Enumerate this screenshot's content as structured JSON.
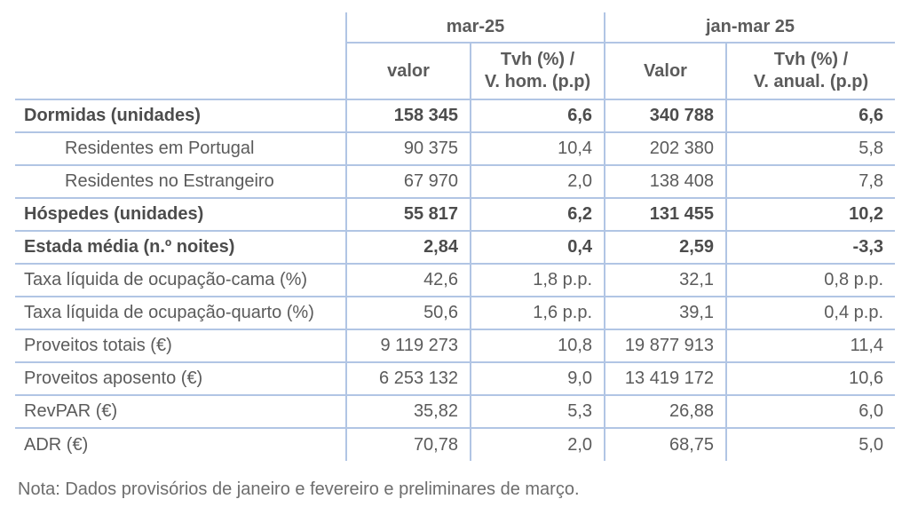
{
  "table": {
    "header": {
      "period_month": "mar-25",
      "period_quarter": "jan-mar 25",
      "col_value_month": "valor",
      "col_var_month_line1": "Tvh (%) /",
      "col_var_month_line2": "V. hom. (p.p)",
      "col_value_quarter": "Valor",
      "col_var_quarter_line1": "Tvh (%) /",
      "col_var_quarter_line2": "V. anual. (p.p)"
    },
    "rows": [
      {
        "label": "Dormidas (unidades)",
        "valor_mes": "158 345",
        "tvh_mes": "6,6",
        "valor_trim": "340 788",
        "tvh_anual": "6,6"
      },
      {
        "label": "Residentes em Portugal",
        "valor_mes": "90 375",
        "tvh_mes": "10,4",
        "valor_trim": "202 380",
        "tvh_anual": "5,8"
      },
      {
        "label": "Residentes no Estrangeiro",
        "valor_mes": "67 970",
        "tvh_mes": "2,0",
        "valor_trim": "138 408",
        "tvh_anual": "7,8"
      },
      {
        "label": "Hóspedes (unidades)",
        "valor_mes": "55 817",
        "tvh_mes": "6,2",
        "valor_trim": "131 455",
        "tvh_anual": "10,2"
      },
      {
        "label": "Estada média (n.º noites)",
        "valor_mes": "2,84",
        "tvh_mes": "0,4",
        "valor_trim": "2,59",
        "tvh_anual": "-3,3"
      },
      {
        "label": "Taxa líquida de ocupação-cama (%)",
        "valor_mes": "42,6",
        "tvh_mes": "1,8 p.p.",
        "valor_trim": "32,1",
        "tvh_anual": "0,8 p.p."
      },
      {
        "label": "Taxa líquida de ocupação-quarto (%)",
        "valor_mes": "50,6",
        "tvh_mes": "1,6 p.p.",
        "valor_trim": "39,1",
        "tvh_anual": "0,4 p.p."
      },
      {
        "label": "Proveitos totais (€)",
        "valor_mes": "9 119 273",
        "tvh_mes": "10,8",
        "valor_trim": "19 877 913",
        "tvh_anual": "11,4"
      },
      {
        "label": "Proveitos aposento (€)",
        "valor_mes": "6 253 132",
        "tvh_mes": "9,0",
        "valor_trim": "13 419 172",
        "tvh_anual": "10,6"
      },
      {
        "label": "RevPAR (€)",
        "valor_mes": "35,82",
        "tvh_mes": "5,3",
        "valor_trim": "26,88",
        "tvh_anual": "6,0"
      },
      {
        "label": "ADR (€)",
        "valor_mes": "70,78",
        "tvh_mes": "2,0",
        "valor_trim": "68,75",
        "tvh_anual": "5,0"
      }
    ]
  },
  "note": "Nota: Dados provisórios de janeiro e fevereiro e preliminares de março.",
  "colors": {
    "border": "#b1c5e4",
    "text": "#5b5b5b",
    "text_bold": "#4c4c4c",
    "note_text": "#6d6d6d"
  }
}
